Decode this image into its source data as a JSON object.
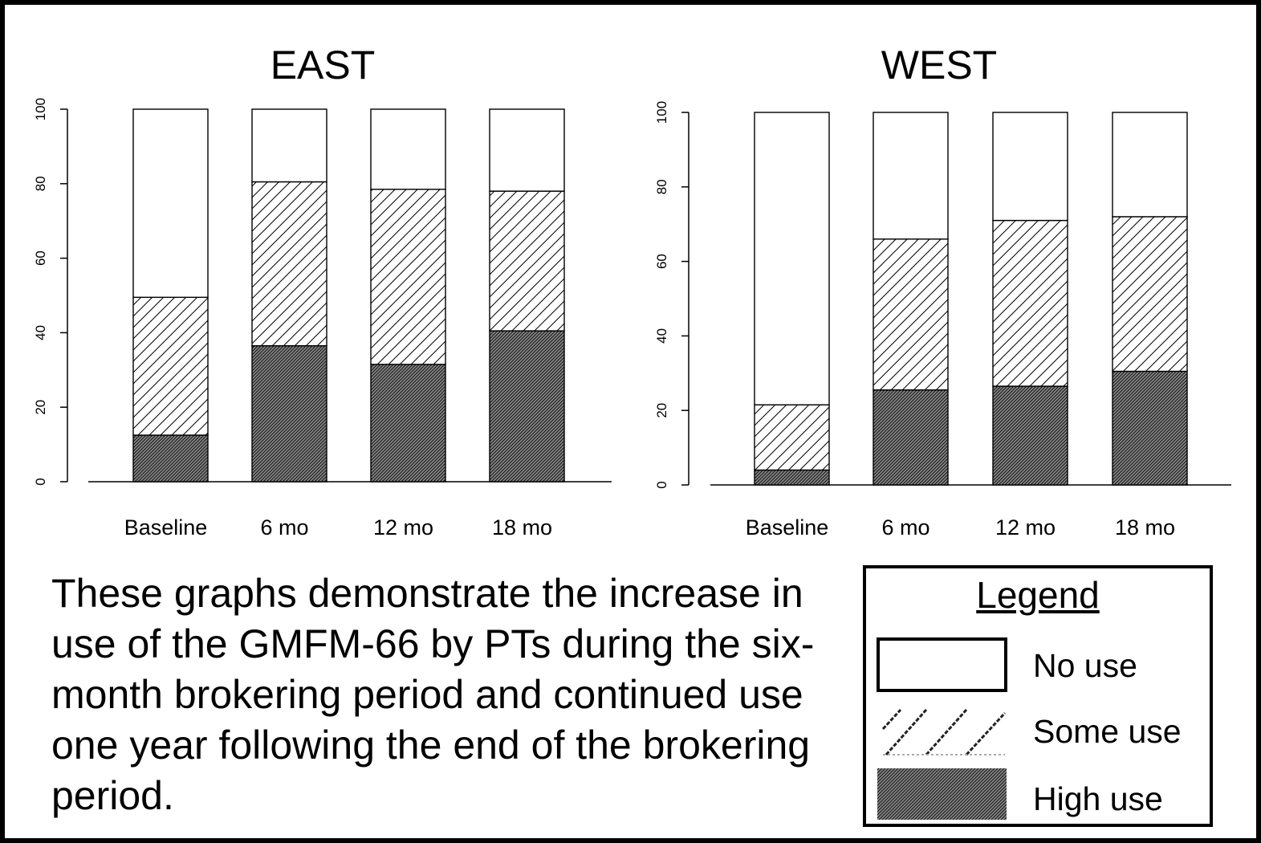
{
  "chart_data": [
    {
      "type": "bar",
      "stacked": true,
      "title": "EAST",
      "categories": [
        "Baseline",
        "6 mo",
        "12 mo",
        "18 mo"
      ],
      "ylim": [
        0,
        100
      ],
      "yticks": [
        0,
        20,
        40,
        60,
        80,
        100
      ],
      "series": [
        {
          "name": "High use",
          "values": [
            12.5,
            36.5,
            31.5,
            40.5
          ]
        },
        {
          "name": "Some use",
          "values": [
            37,
            44,
            47,
            37.5
          ]
        },
        {
          "name": "No use",
          "values": [
            50.5,
            19.5,
            21.5,
            22
          ]
        }
      ]
    },
    {
      "type": "bar",
      "stacked": true,
      "title": "WEST",
      "categories": [
        "Baseline",
        "6 mo",
        "12 mo",
        "18 mo"
      ],
      "ylim": [
        0,
        100
      ],
      "yticks": [
        0,
        20,
        40,
        60,
        80,
        100
      ],
      "series": [
        {
          "name": "High use",
          "values": [
            4,
            25.5,
            26.5,
            30.5
          ]
        },
        {
          "name": "Some use",
          "values": [
            17.5,
            40.5,
            44.5,
            41.5
          ]
        },
        {
          "name": "No use",
          "values": [
            78.5,
            34,
            29,
            28
          ]
        }
      ]
    }
  ],
  "caption": "These graphs demonstrate the increase in use of the GMFM-66 by PTs during the six-month brokering period and continued use one year following the end of the brokering period.",
  "legend": {
    "title": "Legend",
    "items": [
      {
        "label": "No use",
        "pattern": "empty"
      },
      {
        "label": "Some use",
        "pattern": "hatch"
      },
      {
        "label": "High use",
        "pattern": "dense"
      }
    ]
  },
  "colors": {
    "ink": "#000000",
    "background": "#ffffff",
    "high_use_fill": "#777777"
  }
}
